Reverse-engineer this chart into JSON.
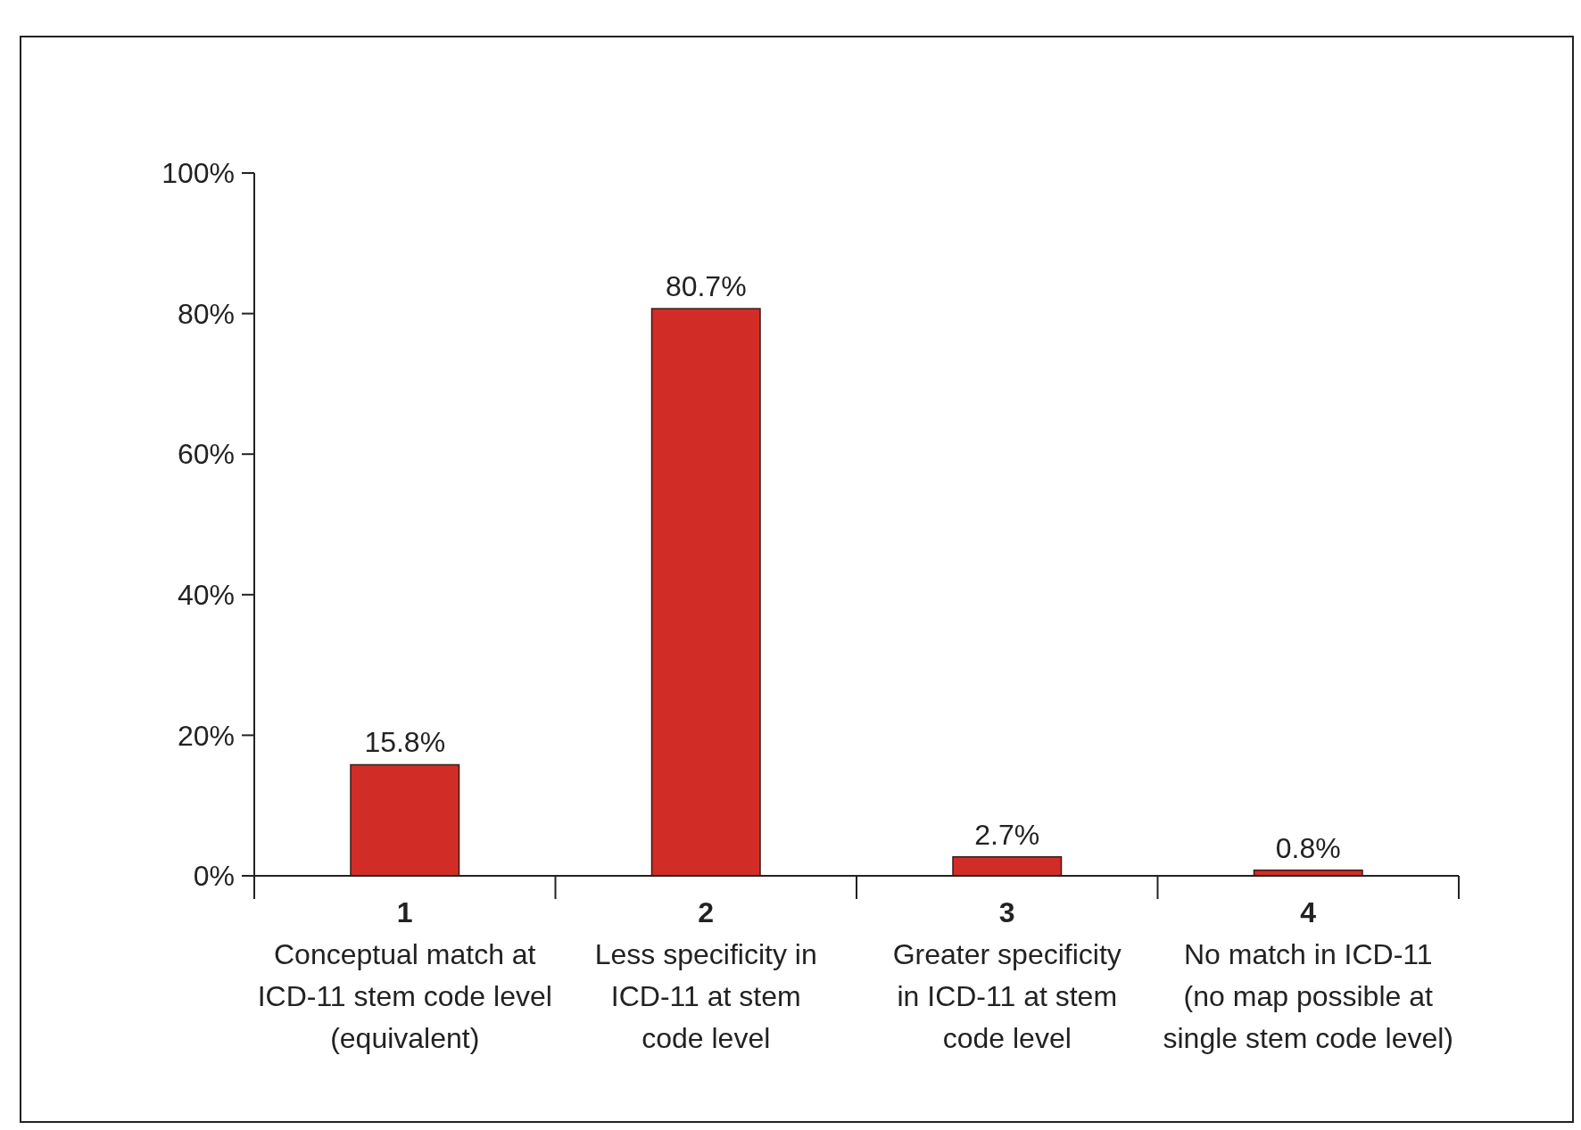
{
  "chart_data": {
    "type": "bar",
    "categories": [
      "1\nConceptual match at\nICD-11 stem code level\n(equivalent)",
      "2\nLess specificity in\nICD-11 at stem\ncode level",
      "3\nGreater specificity\nin ICD-11 at stem\ncode level",
      "4\nNo match in ICD-11\n(no map possible at\nsingle stem code level)"
    ],
    "values": [
      15.8,
      80.7,
      2.7,
      0.8
    ],
    "value_labels": [
      "15.8%",
      "80.7%",
      "2.7%",
      "0.8%"
    ],
    "color": "#d12d26",
    "ylim": [
      0,
      100
    ],
    "yticks": [
      {
        "value": 0,
        "label": "0%"
      },
      {
        "value": 20,
        "label": "20%"
      },
      {
        "value": 40,
        "label": "40%"
      },
      {
        "value": 60,
        "label": "60%"
      },
      {
        "value": 80,
        "label": "80%"
      },
      {
        "value": 100,
        "label": "100%"
      }
    ],
    "grid": false
  }
}
